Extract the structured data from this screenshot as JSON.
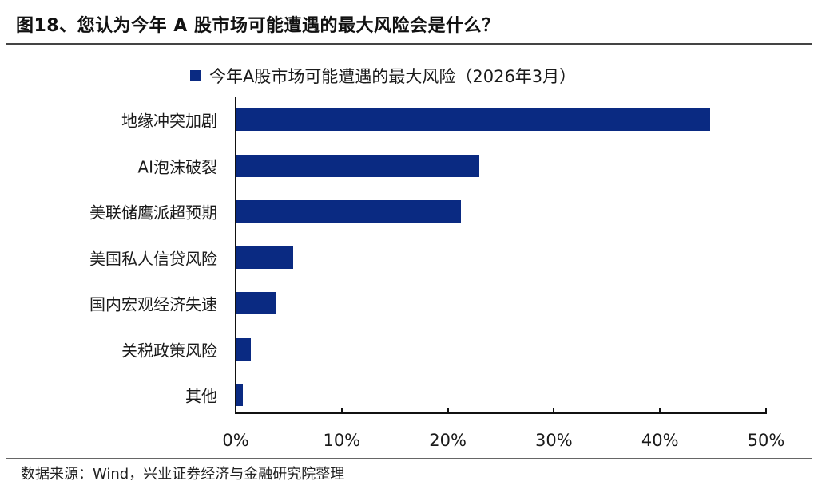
{
  "figure": {
    "title": "图18、您认为今年 A 股市场可能遭遇的最大风险会是什么？",
    "source": "数据来源：Wind，兴业证券经济与金融研究院整理"
  },
  "colors": {
    "bar": "#0a2a82",
    "axis": "#111111",
    "rule": "#444444"
  },
  "legend": {
    "label": "今年A股市场可能遭遇的最大风险（2026年3月）"
  },
  "axis": {
    "x_ticks": [
      "0%",
      "10%",
      "20%",
      "30%",
      "40%",
      "50%"
    ]
  },
  "categories": [
    {
      "label": "地缘冲突加剧",
      "value": 44.7
    },
    {
      "label": "AI泡沫破裂",
      "value": 23.0
    },
    {
      "label": "美联储鹰派超预期",
      "value": 21.2
    },
    {
      "label": "美国私人信贷风险",
      "value": 5.4
    },
    {
      "label": "国内宏观经济失速",
      "value": 3.8
    },
    {
      "label": "关税政策风险",
      "value": 1.4
    },
    {
      "label": "其他",
      "value": 0.7
    }
  ],
  "chart_data": {
    "type": "bar",
    "orientation": "horizontal",
    "title": "图18、您认为今年 A 股市场可能遭遇的最大风险会是什么？",
    "categories": [
      "地缘冲突加剧",
      "AI泡沫破裂",
      "美联储鹰派超预期",
      "美国私人信贷风险",
      "国内宏观经济失速",
      "关税政策风险",
      "其他"
    ],
    "series": [
      {
        "name": "今年A股市场可能遭遇的最大风险（2026年3月）",
        "values": [
          44.7,
          23.0,
          21.2,
          5.4,
          3.8,
          1.4,
          0.7
        ]
      }
    ],
    "xlabel": "",
    "ylabel": "",
    "xlim": [
      0,
      50
    ],
    "x_ticks": [
      "0%",
      "10%",
      "20%",
      "30%",
      "40%",
      "50%"
    ],
    "unit": "%",
    "grid": false,
    "legend_position": "top",
    "source": "数据来源：Wind，兴业证券经济与金融研究院整理"
  }
}
